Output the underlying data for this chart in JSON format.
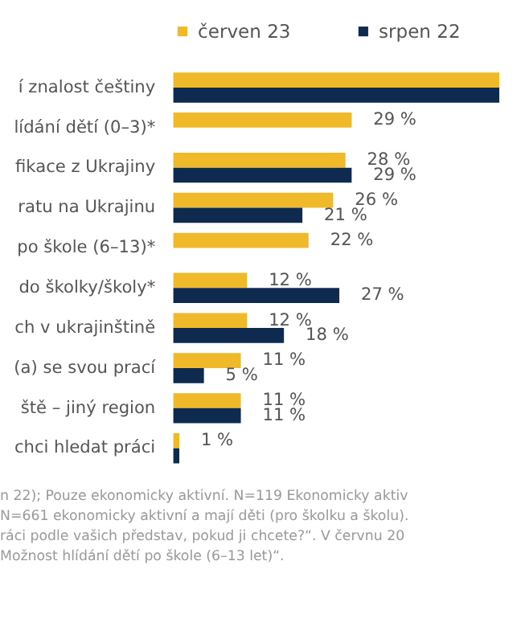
{
  "chart_data": {
    "type": "bar",
    "orientation": "horizontal",
    "categories": [
      "í znalost češtiny",
      "lídání dětí (0–3)*",
      "fikace z Ukrajiny",
      "ratu na Ukrajinu",
      "po škole (6–13)*",
      "do školky/školy*",
      "ch v ukrajinštině",
      "(a) se svou prací",
      "ště – jiný region",
      "chci hledat práci"
    ],
    "series": [
      {
        "name": "červen 23",
        "color": "#f0b929",
        "values": [
          53,
          29,
          28,
          26,
          22,
          12,
          12,
          11,
          11,
          1
        ],
        "value_labels": [
          null,
          "29 %",
          "28 %",
          "26 %",
          "22 %",
          "12 %",
          "12 %",
          "11 %",
          "11 %",
          "1 %"
        ]
      },
      {
        "name": "srpen 22",
        "color": "#0f2a4f",
        "values": [
          53,
          null,
          29,
          21,
          null,
          27,
          18,
          5,
          11,
          1
        ],
        "value_labels": [
          null,
          null,
          "29 %",
          "21 %",
          null,
          "27 %",
          "18 %",
          "5 %",
          "11 %",
          null
        ]
      }
    ],
    "xlim": [
      0,
      53
    ],
    "tick_labels": "y",
    "grid": false,
    "legend": "top",
    "annotations": [
      "n 22); Pouze ekonomicky aktivní. N=119 Ekonomicky aktiv",
      "N=661 ekonomicky aktivní a mají děti (pro školku a školu).",
      "ráci podle vašich představ, pokud ji chcete?“. V červnu 20",
      "Možnost hlídání dětí po škole (6–13 let)“."
    ]
  }
}
